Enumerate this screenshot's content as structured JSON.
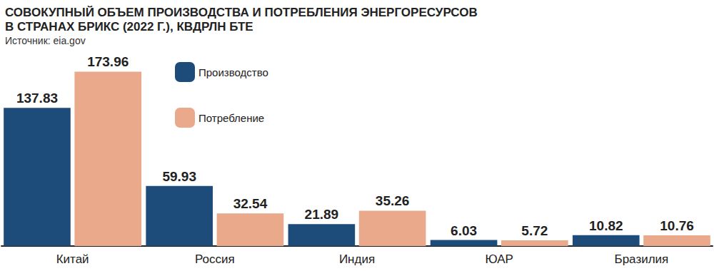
{
  "chart_data": {
    "type": "bar",
    "title": "СОВОКУПНЫЙ ОБЪЕМ ПРОИЗВОДСТВА И ПОТРЕБЛЕНИЯ ЭНЕРГОРЕСУРСОВ\nВ СТРАНАХ БРИКС (2022 Г.), КВДРЛН БТЕ",
    "subtitle": "Источник: eia.gov",
    "categories": [
      "Китай",
      "Россия",
      "Индия",
      "ЮАР",
      "Бразилия"
    ],
    "series": [
      {
        "name": "Производство",
        "color": "#1d4b7a",
        "values": [
          137.83,
          59.93,
          21.89,
          6.03,
          10.82
        ]
      },
      {
        "name": "Потребление",
        "color": "#eba98b",
        "values": [
          173.96,
          32.54,
          35.26,
          5.72,
          10.76
        ]
      }
    ],
    "ylim": [
      0,
      180
    ],
    "grid": false,
    "legend": "top",
    "data_labels": true,
    "tick_labels": "x"
  }
}
